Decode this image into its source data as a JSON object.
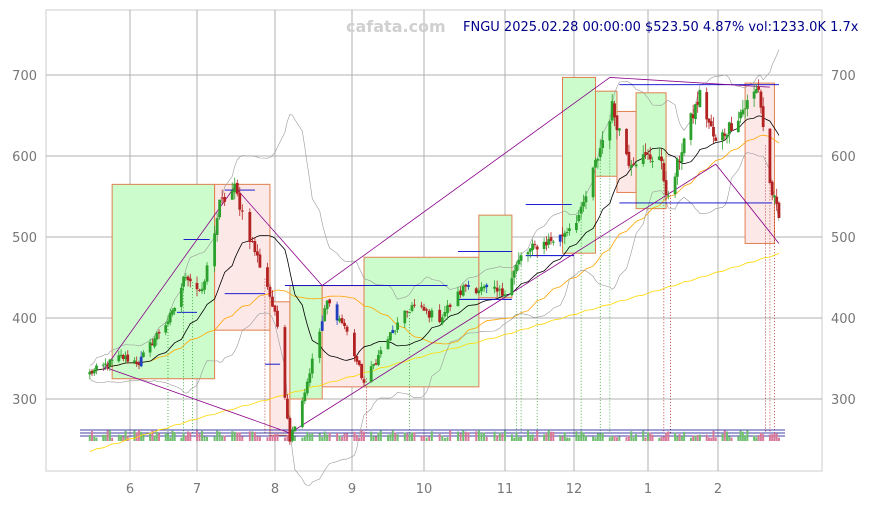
{
  "chart_data": {
    "type": "candlestick",
    "watermark": "cafata.com",
    "info_line": "FNGU 2025.02.28 00:00:00 $523.50 4.87% vol:1233.0K 1.7x",
    "x_ticks": [
      "6",
      "7",
      "8",
      "9",
      "10",
      "11",
      "12",
      "1",
      "2"
    ],
    "y_ticks": [
      300,
      400,
      500,
      600,
      700
    ],
    "ylim": [
      210,
      780
    ],
    "grid": true,
    "price_path": [
      {
        "date": "2024-05-14",
        "price": 332
      },
      {
        "date": "2024-05-28",
        "price": 352
      },
      {
        "date": "2024-06-05",
        "price": 345
      },
      {
        "date": "2024-06-12",
        "price": 375
      },
      {
        "date": "2024-06-20",
        "price": 405
      },
      {
        "date": "2024-06-26",
        "price": 455
      },
      {
        "date": "2024-07-03",
        "price": 430
      },
      {
        "date": "2024-07-10",
        "price": 540
      },
      {
        "date": "2024-07-16",
        "price": 560
      },
      {
        "date": "2024-07-22",
        "price": 500
      },
      {
        "date": "2024-07-29",
        "price": 440
      },
      {
        "date": "2024-08-02",
        "price": 390
      },
      {
        "date": "2024-08-07",
        "price": 250
      },
      {
        "date": "2024-08-13",
        "price": 310
      },
      {
        "date": "2024-08-22",
        "price": 420
      },
      {
        "date": "2024-08-29",
        "price": 390
      },
      {
        "date": "2024-09-06",
        "price": 320
      },
      {
        "date": "2024-09-16",
        "price": 375
      },
      {
        "date": "2024-09-26",
        "price": 415
      },
      {
        "date": "2024-10-07",
        "price": 400
      },
      {
        "date": "2024-10-17",
        "price": 440
      },
      {
        "date": "2024-10-31",
        "price": 430
      },
      {
        "date": "2024-11-08",
        "price": 475
      },
      {
        "date": "2024-11-15",
        "price": 490
      },
      {
        "date": "2024-11-25",
        "price": 500
      },
      {
        "date": "2024-12-04",
        "price": 530
      },
      {
        "date": "2024-12-11",
        "price": 600
      },
      {
        "date": "2024-12-17",
        "price": 660
      },
      {
        "date": "2024-12-24",
        "price": 595
      },
      {
        "date": "2025-01-06",
        "price": 600
      },
      {
        "date": "2025-01-10",
        "price": 545
      },
      {
        "date": "2025-01-17",
        "price": 620
      },
      {
        "date": "2025-01-24",
        "price": 675
      },
      {
        "date": "2025-01-31",
        "price": 615
      },
      {
        "date": "2025-02-07",
        "price": 640
      },
      {
        "date": "2025-02-14",
        "price": 665
      },
      {
        "date": "2025-02-19",
        "price": 685
      },
      {
        "date": "2025-02-24",
        "price": 565
      },
      {
        "date": "2025-02-28",
        "price": 523.5
      }
    ],
    "zones": [
      {
        "type": "up",
        "start": "2024-05-24",
        "end": "2024-07-08",
        "low": 325,
        "high": 565
      },
      {
        "type": "down",
        "start": "2024-07-08",
        "end": "2024-07-30",
        "low": 385,
        "high": 565
      },
      {
        "type": "down",
        "start": "2024-07-30",
        "end": "2024-08-07",
        "low": 255,
        "high": 420
      },
      {
        "type": "up",
        "start": "2024-08-07",
        "end": "2024-08-20",
        "low": 300,
        "high": 440
      },
      {
        "type": "down",
        "start": "2024-08-20",
        "end": "2024-09-06",
        "low": 315,
        "high": 440
      },
      {
        "type": "up",
        "start": "2024-09-06",
        "end": "2024-10-22",
        "low": 315,
        "high": 475
      },
      {
        "type": "up",
        "start": "2024-10-22",
        "end": "2024-11-04",
        "low": 425,
        "high": 527
      },
      {
        "type": "up",
        "start": "2024-11-26",
        "end": "2024-12-10",
        "low": 480,
        "high": 697
      },
      {
        "type": "up",
        "start": "2024-12-10",
        "end": "2024-12-19",
        "low": 575,
        "high": 680
      },
      {
        "type": "down",
        "start": "2024-12-19",
        "end": "2024-12-27",
        "low": 555,
        "high": 655
      },
      {
        "type": "up",
        "start": "2024-12-27",
        "end": "2025-01-09",
        "low": 535,
        "high": 678
      },
      {
        "type": "down",
        "start": "2025-02-13",
        "end": "2025-02-26",
        "low": 492,
        "high": 690
      }
    ],
    "levels": [
      {
        "start": "2024-06-25",
        "end": "2024-07-06",
        "price": 497
      },
      {
        "start": "2024-06-22",
        "end": "2024-07-01",
        "price": 407
      },
      {
        "start": "2024-07-12",
        "end": "2024-07-24",
        "price": 558
      },
      {
        "start": "2024-07-12",
        "end": "2024-07-28",
        "price": 430
      },
      {
        "start": "2024-07-28",
        "end": "2024-08-03",
        "price": 343
      },
      {
        "start": "2024-08-05",
        "end": "2024-10-10",
        "price": 440
      },
      {
        "start": "2024-10-14",
        "end": "2024-11-04",
        "price": 482
      },
      {
        "start": "2024-10-14",
        "end": "2024-11-04",
        "price": 423
      },
      {
        "start": "2024-11-10",
        "end": "2024-11-30",
        "price": 540
      },
      {
        "start": "2024-11-10",
        "end": "2024-12-01",
        "price": 477
      },
      {
        "start": "2024-12-20",
        "end": "2025-02-25",
        "price": 542
      },
      {
        "start": "2024-12-20",
        "end": "2025-02-28",
        "price": 688
      }
    ],
    "trend_lines": [
      {
        "from": {
          "date": "2024-07-16",
          "price": 562
        },
        "to": {
          "date": "2024-08-20",
          "price": 440
        }
      },
      {
        "from": {
          "date": "2024-08-20",
          "price": 440
        },
        "to": {
          "date": "2024-12-16",
          "price": 697
        }
      },
      {
        "from": {
          "date": "2024-12-16",
          "price": 697
        },
        "to": {
          "date": "2025-02-24",
          "price": 685
        }
      },
      {
        "from": {
          "date": "2024-05-20",
          "price": 335
        },
        "to": {
          "date": "2024-07-16",
          "price": 562
        }
      },
      {
        "from": {
          "date": "2024-05-20",
          "price": 340
        },
        "to": {
          "date": "2024-08-07",
          "price": 258
        }
      },
      {
        "from": {
          "date": "2024-08-07",
          "price": 258
        },
        "to": {
          "date": "2025-01-31",
          "price": 590
        }
      },
      {
        "from": {
          "date": "2025-01-31",
          "price": 590
        },
        "to": {
          "date": "2025-02-28",
          "price": 492
        }
      }
    ],
    "markers": [
      {
        "date": "2024-06-18",
        "color": "green"
      },
      {
        "date": "2024-06-25",
        "color": "green"
      },
      {
        "date": "2024-06-29",
        "color": "green"
      },
      {
        "date": "2024-07-28",
        "color": "red"
      },
      {
        "date": "2024-09-07",
        "color": "red"
      },
      {
        "date": "2024-09-25",
        "color": "green"
      },
      {
        "date": "2024-11-06",
        "color": "green"
      },
      {
        "date": "2024-11-08",
        "color": "green"
      },
      {
        "date": "2024-11-15",
        "color": "green"
      },
      {
        "date": "2024-12-04",
        "color": "green"
      },
      {
        "date": "2024-12-12",
        "color": "green"
      },
      {
        "date": "2024-12-16",
        "color": "green"
      },
      {
        "date": "2025-01-08",
        "color": "red"
      },
      {
        "date": "2025-01-11",
        "color": "red"
      },
      {
        "date": "2025-02-22",
        "color": "red"
      },
      {
        "date": "2025-02-24",
        "color": "red"
      },
      {
        "date": "2025-02-26",
        "color": "red"
      }
    ],
    "colors": {
      "up_candle": "#2ca02c",
      "down_candle": "#b22222",
      "special_candle": "#1f3fbf",
      "up_zone_fill": "#ccfccc",
      "down_zone_fill": "#fde8e8",
      "zone_border": "#e08050",
      "ma_short": "#000000",
      "ma_mid": "#ffa500",
      "ma_long": "#ffd700",
      "bands": "#999999",
      "trend": "#8b008b",
      "level": "#0000cd",
      "info_text": "#00008b"
    }
  }
}
